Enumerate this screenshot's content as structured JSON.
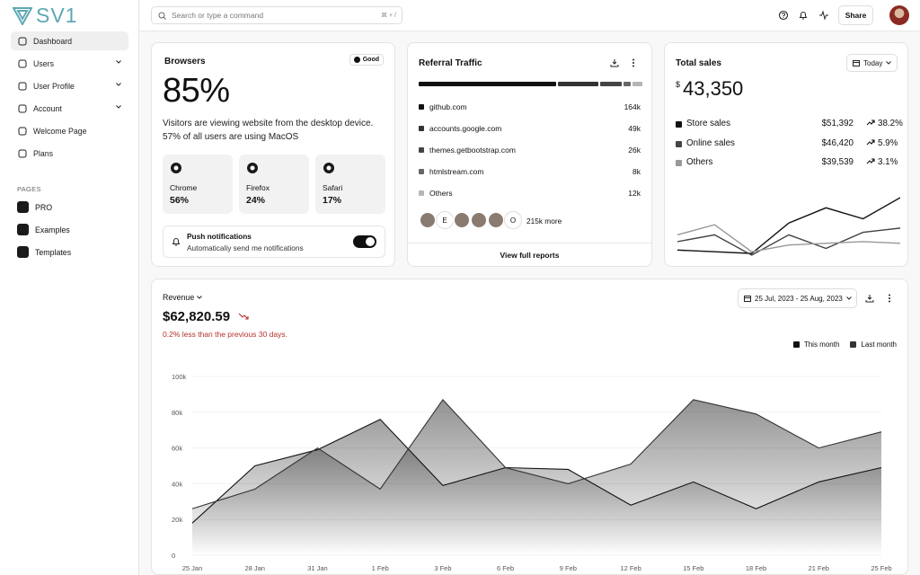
{
  "sidebar": {
    "logo": "SV1",
    "nav": [
      "Dashboard",
      "Users",
      "User Profile",
      "Account",
      "Welcome Page",
      "Plans"
    ],
    "section": "PAGES",
    "pages": [
      "PRO",
      "Examples",
      "Templates"
    ]
  },
  "topbar": {
    "search_placeholder": "Search or type a command",
    "shortcut": "⌘ + /",
    "share": "Share"
  },
  "browsers": {
    "title": "Browsers",
    "badge": "Good",
    "percent": "85%",
    "description": [
      "Visitors are viewing website from the desktop device.",
      "57% of all users are using MacOS"
    ],
    "items": [
      {
        "name": "Chrome",
        "value": "56%"
      },
      {
        "name": "Firefox",
        "value": "24%"
      },
      {
        "name": "Safari",
        "value": "17%"
      }
    ],
    "push_title": "Push notifications",
    "push_text": "Automaticaliy send me notifications"
  },
  "referral": {
    "title": "Referral Traffic",
    "sources": [
      {
        "name": "github.com",
        "value": 164000,
        "label": "164k",
        "color": "#111111"
      },
      {
        "name": "accounts.google.com",
        "value": 49000,
        "label": "49k",
        "color": "#333333"
      },
      {
        "name": "themes.getbootstrap.com",
        "value": 26000,
        "label": "26k",
        "color": "#444444"
      },
      {
        "name": "htmlstream.com",
        "value": 8000,
        "label": "8k",
        "color": "#666666"
      },
      {
        "name": "Others",
        "value": 12000,
        "label": "12k",
        "color": "#b5b5b5"
      }
    ],
    "avatar_letters": [
      "E",
      "O"
    ],
    "more": "215k more",
    "link": "View full reports"
  },
  "total_sales": {
    "title": "Total sales",
    "period": "Today",
    "currency": "$",
    "amount": "43,350",
    "rows": [
      {
        "name": "Store sales",
        "value": "$51,392",
        "change": "38.2%",
        "color": "#111111"
      },
      {
        "name": "Online sales",
        "value": "$46,420",
        "change": "5.9%",
        "color": "#444444"
      },
      {
        "name": "Others",
        "value": "$39,539",
        "change": "3.1%",
        "color": "#999999"
      }
    ]
  },
  "revenue": {
    "amount": "$62,820.59",
    "note": "0.2% less than the previous 30 days.",
    "date_range": "25 Jul, 2023 - 25 Aug, 2023"
  },
  "chart_data": [
    {
      "type": "line",
      "series": [
        {
          "color": "#111111",
          "values": [
            10,
            8,
            6,
            42,
            60,
            47,
            72
          ]
        },
        {
          "color": "#444444",
          "values": [
            20,
            28,
            4,
            28,
            12,
            31,
            36
          ]
        },
        {
          "color": "#999999",
          "values": [
            28,
            40,
            8,
            16,
            18,
            20,
            18
          ]
        }
      ]
    },
    {
      "type": "area",
      "title": "Revenue",
      "categories": [
        "25 Jan",
        "28 Jan",
        "31 Jan",
        "1 Feb",
        "3 Feb",
        "6 Feb",
        "9 Feb",
        "12 Feb",
        "15 Feb",
        "18 Feb",
        "21 Feb",
        "25 Feb"
      ],
      "series": [
        {
          "name": "This month",
          "color": "#111111",
          "values": [
            18000,
            50000,
            59000,
            76000,
            39000,
            49000,
            48000,
            28000,
            41000,
            26000,
            41000,
            49000
          ]
        },
        {
          "name": "Last month",
          "color": "#333333",
          "values": [
            26000,
            37000,
            60000,
            37000,
            87000,
            49000,
            40000,
            51000,
            87000,
            79000,
            60000,
            69000
          ]
        }
      ],
      "ylim": [
        0,
        100000
      ],
      "yticks": [
        0,
        {
          "value": 20000,
          "label": "20k"
        },
        {
          "value": 40000,
          "label": "40k"
        },
        {
          "value": 60000,
          "label": "60k"
        },
        {
          "value": 80000,
          "label": "80k"
        },
        {
          "value": 100000,
          "label": "100k"
        }
      ],
      "grid": true
    }
  ]
}
